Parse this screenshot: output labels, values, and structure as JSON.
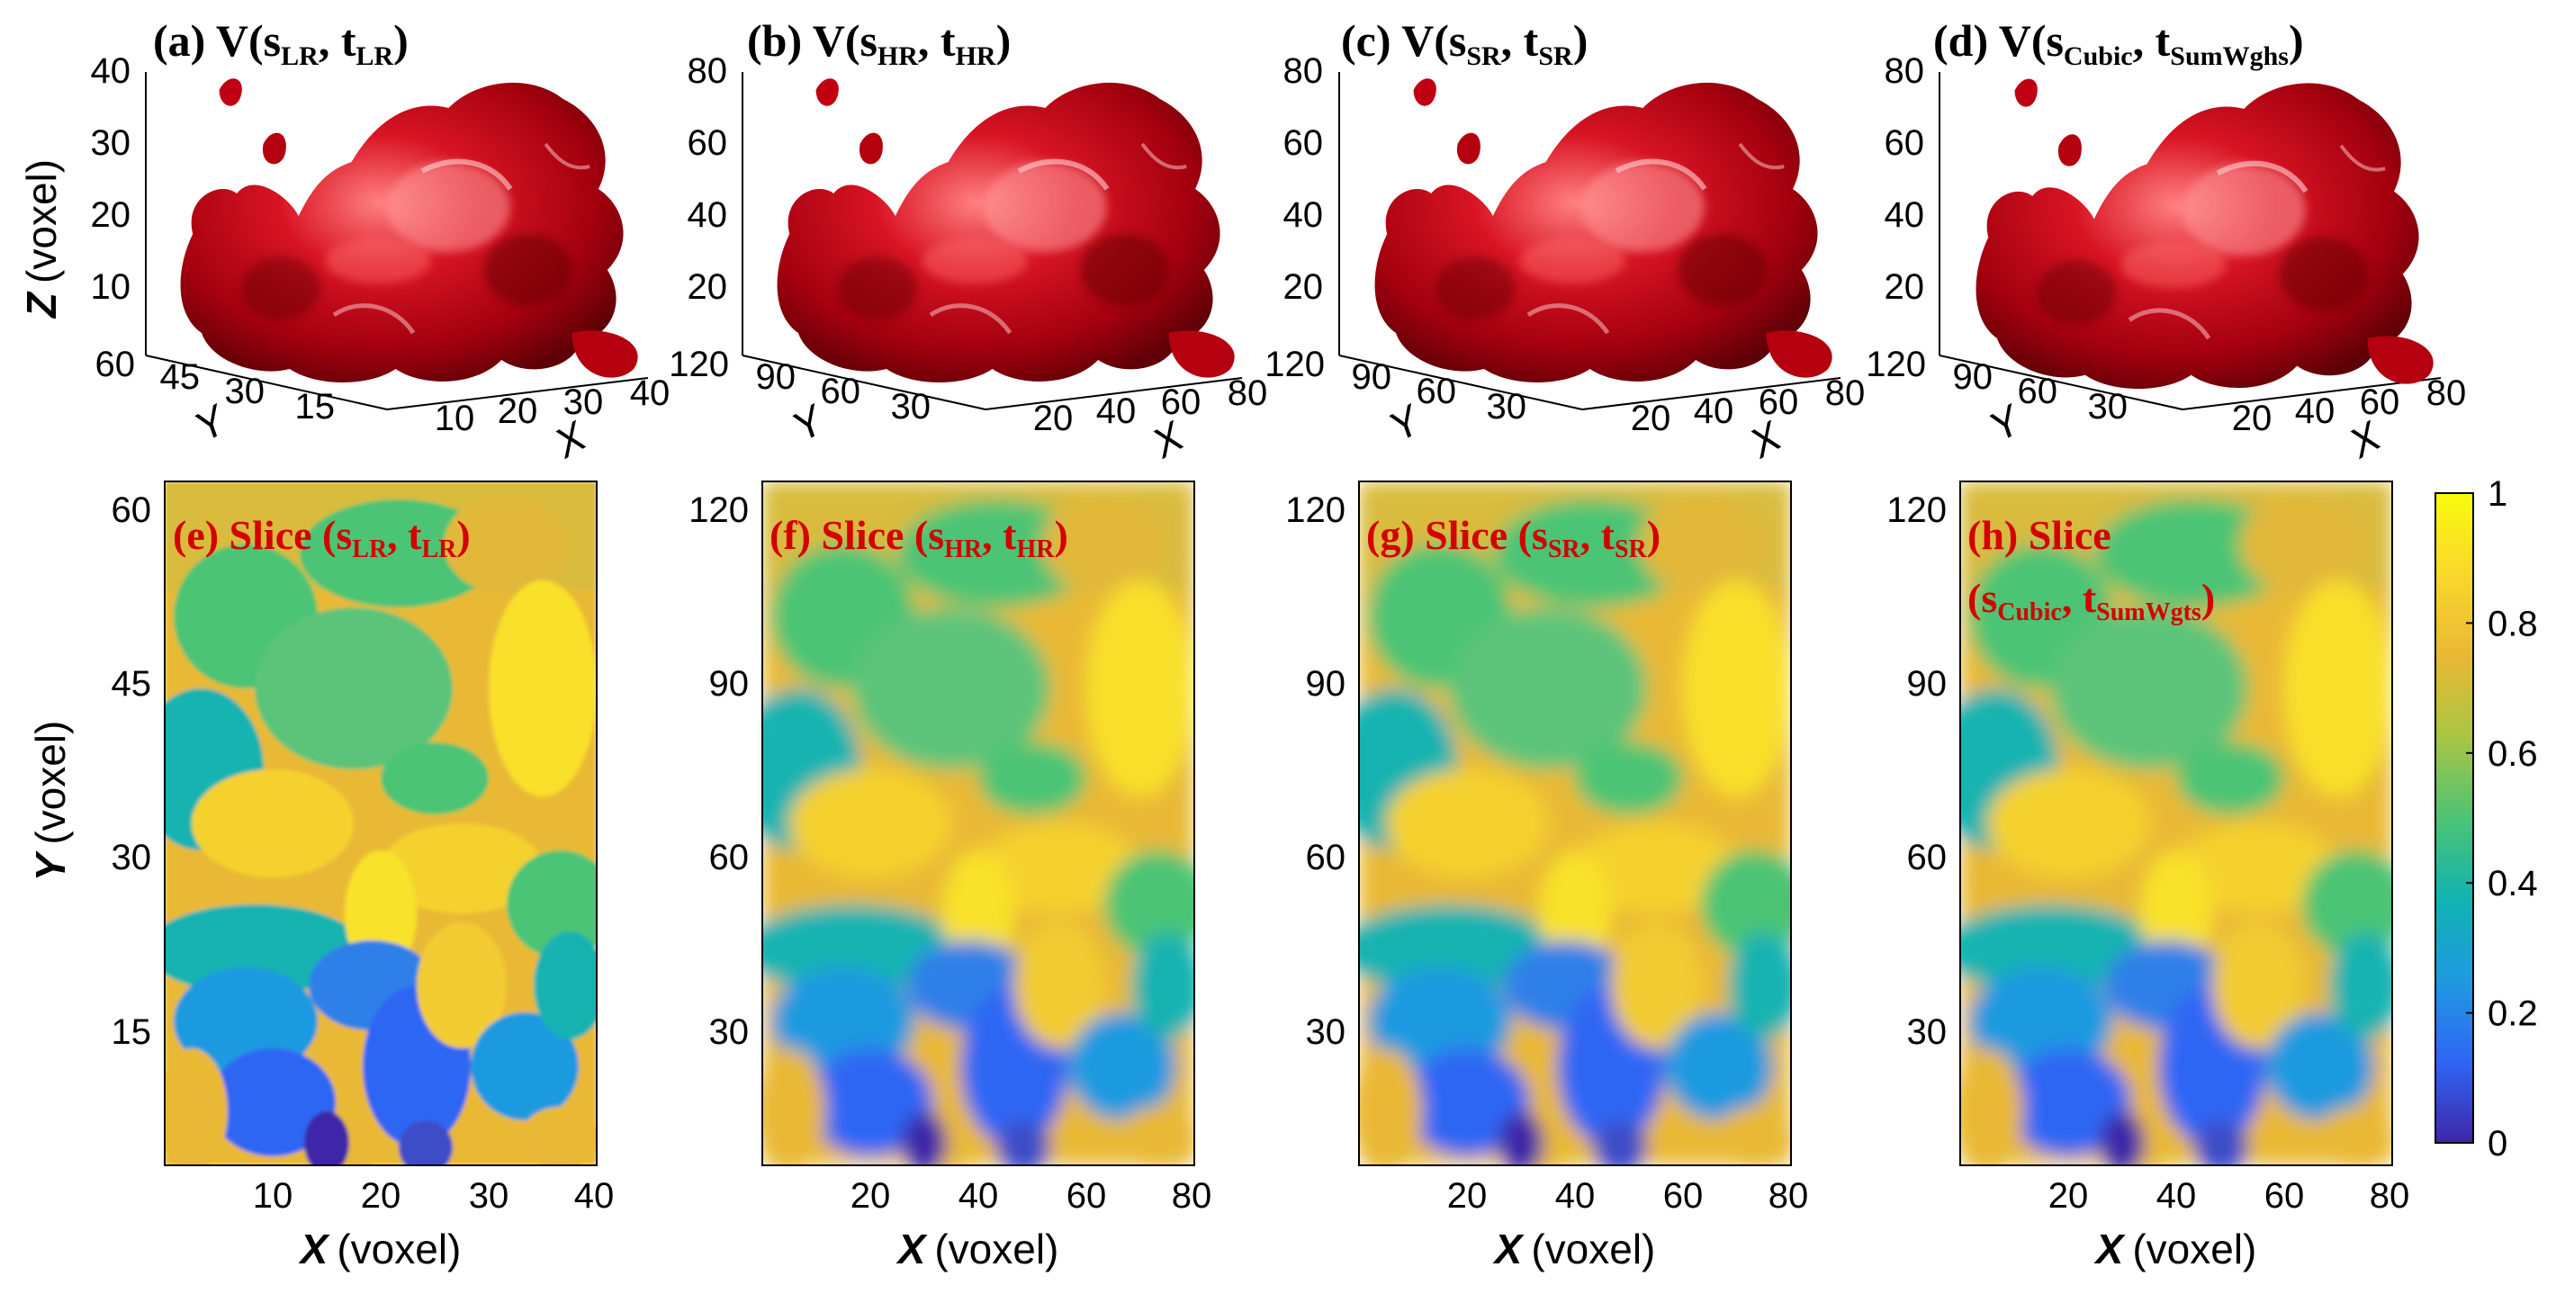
{
  "figure": {
    "colors": {
      "isosurface": "#c8101c",
      "isosurface_dark": "#6d0008",
      "isosurface_light": "#ff6a6a",
      "slice_label": "#d40000",
      "axis": "#000000"
    },
    "top_row": [
      {
        "title_main": "(a) V(s",
        "title_sub1": "LR",
        "title_mid": ", t",
        "title_sub2": "LR",
        "title_end": ")",
        "z_ticks": [
          "40",
          "30",
          "20",
          "10"
        ],
        "y_ticks": [
          "60",
          "45",
          "30",
          "15"
        ],
        "x_ticks": [
          "10",
          "20",
          "30",
          "40"
        ],
        "y_label": "Y",
        "x_label": "X"
      },
      {
        "title_main": "(b) V(s",
        "title_sub1": "HR",
        "title_mid": ", t",
        "title_sub2": "HR",
        "title_end": ")",
        "z_ticks": [
          "80",
          "60",
          "40",
          "20"
        ],
        "y_ticks": [
          "120",
          "90",
          "60",
          "30"
        ],
        "x_ticks": [
          "20",
          "40",
          "60",
          "80"
        ],
        "y_label": "Y",
        "x_label": "X"
      },
      {
        "title_main": "(c) V(s",
        "title_sub1": "SR",
        "title_mid": ", t",
        "title_sub2": "SR",
        "title_end": ")",
        "z_ticks": [
          "80",
          "60",
          "40",
          "20"
        ],
        "y_ticks": [
          "120",
          "90",
          "60",
          "30"
        ],
        "x_ticks": [
          "20",
          "40",
          "60",
          "80"
        ],
        "y_label": "Y",
        "x_label": "X"
      },
      {
        "title_main": "(d) V(s",
        "title_sub1": "Cubic",
        "title_mid": ", t",
        "title_sub2": "SumWghs",
        "title_end": ")",
        "z_ticks": [
          "80",
          "60",
          "40",
          "20"
        ],
        "y_ticks": [
          "120",
          "90",
          "60",
          "30"
        ],
        "x_ticks": [
          "20",
          "40",
          "60",
          "80"
        ],
        "y_label": "Y",
        "x_label": "X"
      }
    ],
    "z_axis_label": "Z",
    "z_axis_unit": "(voxel)",
    "y_axis_label": "Y",
    "y_axis_unit": "(voxel)",
    "x_axis_label": "X",
    "x_axis_unit": "(voxel)",
    "bottom_row": [
      {
        "label_line1_main": "(e) Slice (s",
        "label_line1_sub1": "LR",
        "label_line1_mid": ", t",
        "label_line1_sub2": "LR",
        "label_line1_end": ")",
        "y_ticks": [
          "60",
          "45",
          "30",
          "15"
        ],
        "x_ticks": [
          "10",
          "20",
          "30",
          "40"
        ]
      },
      {
        "label_line1_main": "(f) Slice (s",
        "label_line1_sub1": "HR",
        "label_line1_mid": ", t",
        "label_line1_sub2": "HR",
        "label_line1_end": ")",
        "y_ticks": [
          "120",
          "90",
          "60",
          "30"
        ],
        "x_ticks": [
          "20",
          "40",
          "60",
          "80"
        ]
      },
      {
        "label_line1_main": "(g) Slice (s",
        "label_line1_sub1": "SR",
        "label_line1_mid": ", t",
        "label_line1_sub2": "SR",
        "label_line1_end": ")",
        "y_ticks": [
          "120",
          "90",
          "60",
          "30"
        ],
        "x_ticks": [
          "20",
          "40",
          "60",
          "80"
        ]
      },
      {
        "label_line1_main": "(h) Slice",
        "label_line2_main": "(s",
        "label_line2_sub1": "Cubic",
        "label_line2_mid": ", t",
        "label_line2_sub2": "SumWgts",
        "label_line2_end": ")",
        "y_ticks": [
          "120",
          "90",
          "60",
          "30"
        ],
        "x_ticks": [
          "20",
          "40",
          "60",
          "80"
        ]
      }
    ],
    "colorbar": {
      "ticks": [
        "1",
        "0.8",
        "0.6",
        "0.4",
        "0.2",
        "0"
      ],
      "range": [
        0,
        1
      ],
      "stops": [
        "#3e26a8",
        "#2f66f4",
        "#1f9ae0",
        "#12b3b1",
        "#4cc474",
        "#aac544",
        "#e9b935",
        "#f9d72c",
        "#f9fb0e"
      ]
    }
  }
}
